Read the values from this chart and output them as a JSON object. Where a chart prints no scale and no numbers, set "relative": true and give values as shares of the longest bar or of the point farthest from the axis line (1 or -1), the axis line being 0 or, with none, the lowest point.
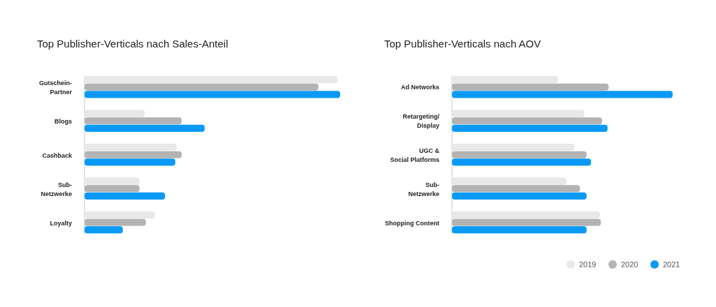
{
  "chart_data": [
    {
      "type": "bar",
      "orientation": "horizontal",
      "relative": true,
      "title": "Top Publisher-Verticals nach Sales-Anteil",
      "categories": [
        "Gutschein-Partner",
        "Blogs",
        "Cashback",
        "Sub-Netzwerke",
        "Loyalty"
      ],
      "series": [
        {
          "color": "#e8e8e8",
          "values": [
            0.99,
            0.235,
            0.36,
            0.215,
            0.275
          ]
        },
        {
          "color": "#b3b3b3",
          "values": [
            0.915,
            0.38,
            0.38,
            0.215,
            0.24
          ]
        },
        {
          "color": "#0a9af5",
          "values": [
            1,
            0.47,
            0.355,
            0.315,
            0.15
          ]
        }
      ],
      "legend": false
    },
    {
      "type": "bar",
      "orientation": "horizontal",
      "relative": true,
      "title": "Top Publisher-Verticals nach AOV",
      "categories": [
        "Ad Networks",
        "Retargeting/ Display",
        "UGC & Social Platforms",
        "Sub-Netzwerke",
        "Shopping Content"
      ],
      "series": [
        {
          "name": "2019",
          "color": "#e8e8e8",
          "values": [
            0.48,
            0.6,
            0.555,
            0.52,
            0.67
          ]
        },
        {
          "name": "2020",
          "color": "#b3b3b3",
          "values": [
            0.71,
            0.68,
            0.61,
            0.58,
            0.675
          ]
        },
        {
          "name": "2021",
          "color": "#0a9af5",
          "values": [
            1,
            0.705,
            0.63,
            0.61,
            0.61
          ]
        }
      ],
      "legend": "bottom right"
    }
  ]
}
